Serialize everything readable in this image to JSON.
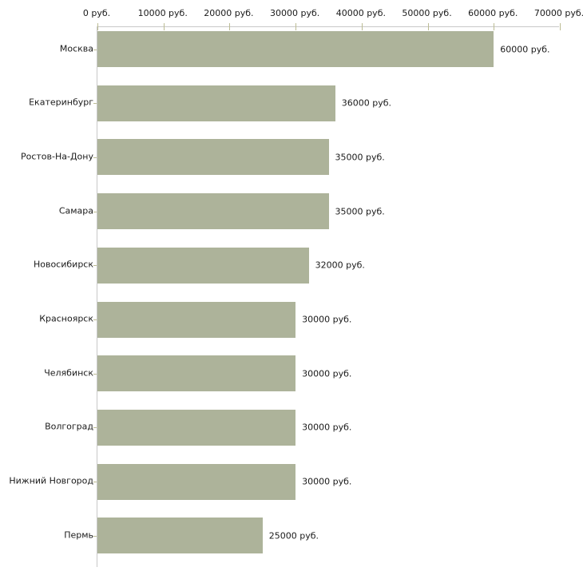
{
  "chart_data": {
    "type": "bar",
    "orientation": "horizontal",
    "title": "",
    "unit": "руб.",
    "categories": [
      "Москва",
      "Екатеринбург",
      "Ростов-На-Дону",
      "Самара",
      "Новосибирск",
      "Красноярск",
      "Челябинск",
      "Волгоград",
      "Нижний Новгород",
      "Пермь"
    ],
    "values": [
      60000,
      36000,
      35000,
      35000,
      32000,
      30000,
      30000,
      30000,
      30000,
      25000
    ],
    "value_labels": [
      "60000 руб.",
      "36000 руб.",
      "35000 руб.",
      "35000 руб.",
      "32000 руб.",
      "30000 руб.",
      "30000 руб.",
      "30000 руб.",
      "30000 руб.",
      "25000 руб."
    ],
    "xlim": [
      0,
      70000
    ],
    "x_tick_labels": [
      "0 руб.",
      "10000 руб.",
      "20000 руб.",
      "30000 руб.",
      "40000 руб.",
      "50000 руб.",
      "60000 руб.",
      "70000 руб."
    ],
    "grid": false,
    "legend": false,
    "colors": {
      "bar": "#adb39a",
      "axis": "#c8c8c8",
      "tick": "#bcbc94",
      "text": "#1a1a1a",
      "background": "#ffffff"
    }
  }
}
